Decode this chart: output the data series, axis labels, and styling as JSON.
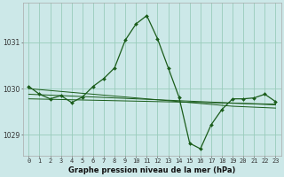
{
  "title": "Graphe pression niveau de la mer (hPa)",
  "bg_color": "#cce8e8",
  "grid_color": "#99ccbb",
  "line_color": "#1a5c1a",
  "xlim": [
    -0.5,
    23.5
  ],
  "ylim": [
    1028.55,
    1031.85
  ],
  "yticks": [
    1029,
    1030,
    1031
  ],
  "xticks": [
    0,
    1,
    2,
    3,
    4,
    5,
    6,
    7,
    8,
    9,
    10,
    11,
    12,
    13,
    14,
    15,
    16,
    17,
    18,
    19,
    20,
    21,
    22,
    23
  ],
  "main_line": [
    1030.05,
    1029.88,
    1029.78,
    1029.85,
    1029.7,
    1029.82,
    1030.05,
    1030.22,
    1030.45,
    1031.05,
    1031.4,
    1031.58,
    1031.08,
    1030.45,
    1029.82,
    1028.82,
    1028.7,
    1029.22,
    1029.55,
    1029.78,
    1029.78,
    1029.8,
    1029.88,
    1029.72
  ],
  "flat_line1": [
    1030.0,
    1029.98,
    1029.96,
    1029.94,
    1029.92,
    1029.9,
    1029.88,
    1029.86,
    1029.84,
    1029.82,
    1029.8,
    1029.78,
    1029.76,
    1029.74,
    1029.72,
    1029.7,
    1029.68,
    1029.66,
    1029.64,
    1029.62,
    1029.61,
    1029.6,
    1029.59,
    1029.58
  ],
  "flat_line2": [
    1029.88,
    1029.87,
    1029.86,
    1029.85,
    1029.84,
    1029.83,
    1029.82,
    1029.81,
    1029.8,
    1029.79,
    1029.78,
    1029.77,
    1029.76,
    1029.75,
    1029.74,
    1029.73,
    1029.72,
    1029.71,
    1029.7,
    1029.69,
    1029.68,
    1029.67,
    1029.66,
    1029.65
  ],
  "flat_line3": [
    1029.78,
    1029.775,
    1029.77,
    1029.765,
    1029.76,
    1029.755,
    1029.75,
    1029.745,
    1029.74,
    1029.735,
    1029.73,
    1029.725,
    1029.72,
    1029.715,
    1029.71,
    1029.705,
    1029.7,
    1029.695,
    1029.69,
    1029.685,
    1029.68,
    1029.675,
    1029.67,
    1029.665
  ],
  "xlabel_fontsize": 6.0,
  "tick_fontsize": 5.0
}
